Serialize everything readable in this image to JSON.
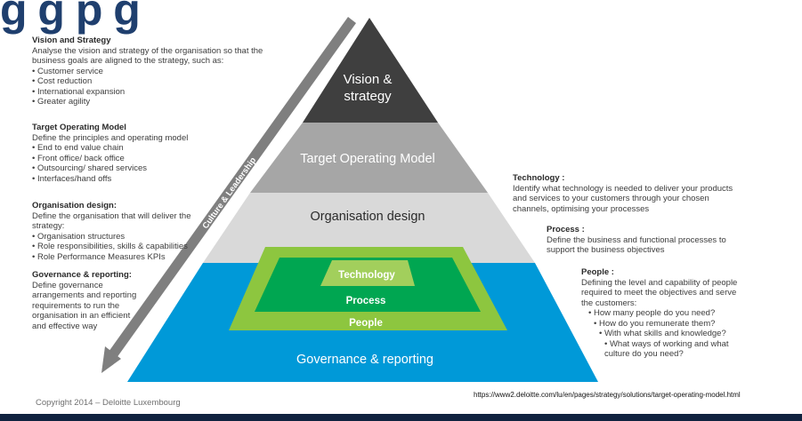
{
  "header_fragment": "g   g   p   g",
  "pyramid": {
    "vision": [
      "Vision &",
      "strategy"
    ],
    "tom": "Target Operating Model",
    "org": "Organisation design",
    "technology": "Technology",
    "process": "Process",
    "people": "People",
    "governance": "Governance & reporting",
    "arrow_label": "Culture & Leadership"
  },
  "left_blocks": {
    "vision_strategy": {
      "heading": "Vision and Strategy",
      "text": "Analyse the vision and strategy of the organisation so that the business goals are aligned to the strategy, such as:",
      "items": [
        "Customer service",
        "Cost reduction",
        "International expansion",
        "Greater agility"
      ]
    },
    "tom": {
      "heading": "Target Operating Model",
      "text": "Define the principles and operating model",
      "items": [
        "End to end value chain",
        "Front office/ back office",
        "Outsourcing/ shared services",
        "Interfaces/hand offs"
      ]
    },
    "org": {
      "heading": "Organisation design:",
      "text": "Define the organisation that will deliver the strategy:",
      "items": [
        "Organisation structures",
        "Role responsibilities, skills & capabilities",
        "Role Performance Measures KPIs"
      ]
    },
    "gov": {
      "heading": "Governance & reporting:",
      "text": "Define governance arrangements and reporting requirements to run the organisation in an efficient and effective way"
    }
  },
  "right_blocks": {
    "technology": {
      "heading": "Technology :",
      "text": "Identify what technology is needed to deliver your products and services to your customers through your chosen channels, optimising your processes"
    },
    "process": {
      "heading": "Process :",
      "text": "Define the business and functional processes to support the business objectives"
    },
    "people": {
      "heading": "People :",
      "text": "Defining the level and capability of people required to meet the objectives and serve the customers:",
      "items": [
        "How many people do you need?",
        "How do you remunerate them?",
        "With what skills and knowledge?",
        "What ways of working and what culture do you need?"
      ]
    }
  },
  "footer": {
    "copyright": "Copyright 2014 – Deloitte Luxembourg",
    "url": "https://www2.deloitte.com/lu/en/pages/strategy/solutions/target-operating-model.html"
  },
  "colors": {
    "vision": "#3f3f3f",
    "tom": "#a6a6a6",
    "org": "#d9d9d9",
    "governance": "#0099d8",
    "people": "#8dc63f",
    "process": "#00a651",
    "technology": "#a2cf5c",
    "arrow": "#7f7f7f",
    "title": "#1f3f6e"
  }
}
